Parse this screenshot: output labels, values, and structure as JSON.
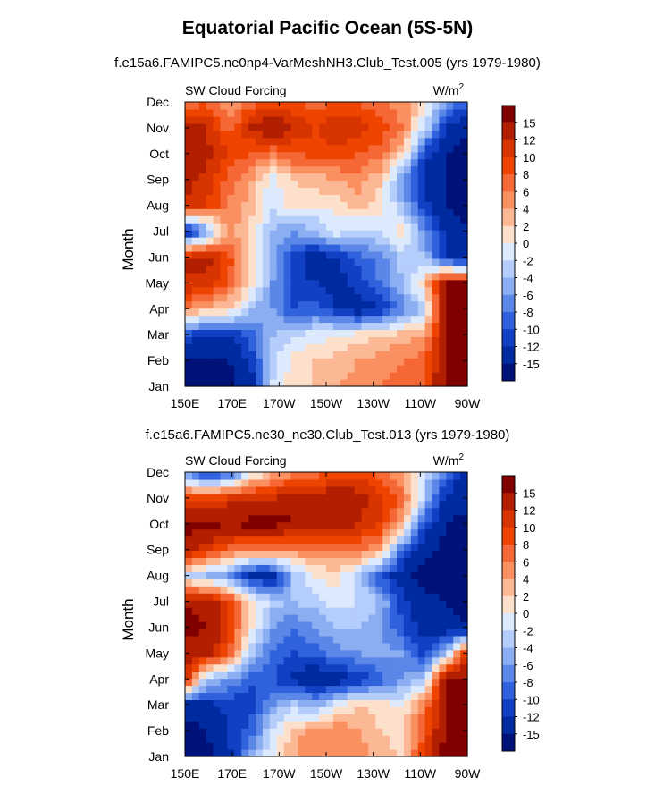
{
  "title": "Equatorial Pacific Ocean (5S-5N)",
  "colorbar": {
    "levels": [
      "15",
      "12",
      "10",
      "8",
      "6",
      "4",
      "2",
      "0",
      "-2",
      "-4",
      "-6",
      "-8",
      "-10",
      "-12",
      "-15"
    ],
    "colors": [
      "#800000",
      "#b21e00",
      "#d83400",
      "#ee4400",
      "#f56735",
      "#fa8f60",
      "#fcb895",
      "#fde0cc",
      "#ddeafd",
      "#b5cdfa",
      "#8baef2",
      "#5b87e8",
      "#2f62dc",
      "#1140c4",
      "#002aa0",
      "#00127a"
    ]
  },
  "chart_data": [
    {
      "type": "heatmap",
      "title": "f.e15a6.FAMIPC5.ne0np4-VarMeshNH3.Club_Test.005 (yrs 1979-1980)",
      "left_label": "SW Cloud Forcing",
      "units_base": "W/m",
      "units_exp": "2",
      "ylabel": "Month",
      "xlabel": "",
      "x_ticks": [
        "150E",
        "170E",
        "170W",
        "150W",
        "130W",
        "110W",
        "90W"
      ],
      "y_ticks": [
        "Jan",
        "Feb",
        "Mar",
        "Apr",
        "May",
        "Jun",
        "Jul",
        "Aug",
        "Sep",
        "Oct",
        "Nov",
        "Dec"
      ],
      "x_range": [
        "150E",
        "90W"
      ],
      "y_range": [
        "Jan",
        "Dec"
      ],
      "value_range": [
        -15,
        15
      ],
      "grid": [
        [
          -16,
          -16,
          -16,
          -14,
          -2,
          1,
          2,
          4,
          5,
          6,
          7,
          8,
          16,
          16
        ],
        [
          -16,
          -16,
          -15,
          -12,
          -3,
          1,
          2,
          3,
          4,
          5,
          6,
          7,
          16,
          16
        ],
        [
          -10,
          -12,
          -12,
          -9,
          -4,
          -2,
          -1,
          0,
          1,
          2,
          3,
          4,
          15,
          15
        ],
        [
          6,
          3,
          2,
          -4,
          -6,
          -10,
          -9,
          -12,
          -14,
          -12,
          -7,
          -4,
          16,
          16
        ],
        [
          12,
          11,
          8,
          2,
          -6,
          -11,
          -12,
          -13,
          -11,
          -8,
          -4,
          2,
          15,
          16
        ],
        [
          12,
          13,
          9,
          2,
          -4,
          -11,
          -14,
          -12,
          -9,
          -7,
          -3,
          -4,
          -12,
          -15
        ],
        [
          -14,
          -6,
          5,
          2,
          -4,
          -6,
          -4,
          -1,
          -3,
          -2,
          2,
          -6,
          -13,
          -15
        ],
        [
          12,
          10,
          6,
          3,
          -2,
          1,
          0,
          1,
          3,
          1,
          -4,
          -11,
          -15,
          -16
        ],
        [
          13,
          11,
          7,
          4,
          -1,
          2,
          3,
          4,
          5,
          2,
          -6,
          -13,
          -15,
          -16
        ],
        [
          14,
          13,
          10,
          8,
          6,
          8,
          9,
          9,
          8,
          7,
          2,
          -11,
          -15,
          -16
        ],
        [
          14,
          12,
          7,
          12,
          15,
          12,
          10,
          12,
          11,
          9,
          6,
          -2,
          -12,
          -15
        ],
        [
          6,
          8,
          4,
          7,
          9,
          8,
          7,
          8,
          8,
          6,
          5,
          1,
          -6,
          -9
        ]
      ]
    },
    {
      "type": "heatmap",
      "title": "f.e15a6.FAMIPC5.ne30_ne30.Club_Test.013 (yrs 1979-1980)",
      "left_label": "SW Cloud Forcing",
      "units_base": "W/m",
      "units_exp": "2",
      "ylabel": "Month",
      "xlabel": "",
      "x_ticks": [
        "150E",
        "170E",
        "170W",
        "150W",
        "130W",
        "110W",
        "90W"
      ],
      "y_ticks": [
        "Jan",
        "Feb",
        "Mar",
        "Apr",
        "May",
        "Jun",
        "Jul",
        "Aug",
        "Sep",
        "Oct",
        "Nov",
        "Dec"
      ],
      "x_range": [
        "150E",
        "90W"
      ],
      "y_range": [
        "Jan",
        "Dec"
      ],
      "value_range": [
        -15,
        15
      ],
      "grid": [
        [
          -16,
          -16,
          -13,
          -6,
          0,
          4,
          6,
          6,
          5,
          3,
          2,
          10,
          16,
          16
        ],
        [
          -16,
          -15,
          -12,
          -9,
          -2,
          3,
          5,
          6,
          4,
          2,
          1,
          8,
          16,
          16
        ],
        [
          -14,
          -13,
          -11,
          -12,
          -6,
          -3,
          -5,
          -1,
          2,
          1,
          0,
          6,
          15,
          16
        ],
        [
          12,
          -4,
          -6,
          -9,
          -10,
          -13,
          -15,
          -14,
          -12,
          -9,
          -6,
          -4,
          16,
          16
        ],
        [
          14,
          13,
          8,
          -3,
          -8,
          -10,
          -9,
          -7,
          -6,
          -5,
          -6,
          -11,
          -4,
          12
        ],
        [
          16,
          15,
          11,
          1,
          -6,
          -8,
          -6,
          -4,
          -4,
          -6,
          -10,
          -13,
          -14,
          -15
        ],
        [
          15,
          14,
          10,
          2,
          -3,
          -4,
          -3,
          -1,
          -2,
          -4,
          -11,
          -14,
          -15,
          -16
        ],
        [
          -2,
          -4,
          -6,
          -13,
          -14,
          -4,
          0,
          1,
          -3,
          -10,
          -14,
          -16,
          -16,
          -16
        ],
        [
          14,
          10,
          7,
          5,
          6,
          5,
          6,
          5,
          6,
          4,
          -9,
          -14,
          -16,
          -16
        ],
        [
          16,
          16,
          15,
          16,
          16,
          15,
          15,
          15,
          12,
          10,
          4,
          -10,
          -15,
          -16
        ],
        [
          10,
          9,
          11,
          12,
          12,
          15,
          13,
          15,
          13,
          11,
          7,
          -3,
          -13,
          -14
        ],
        [
          -6,
          -12,
          -10,
          -2,
          3,
          5,
          7,
          8,
          9,
          7,
          4,
          -2,
          -8,
          -14
        ]
      ]
    }
  ]
}
